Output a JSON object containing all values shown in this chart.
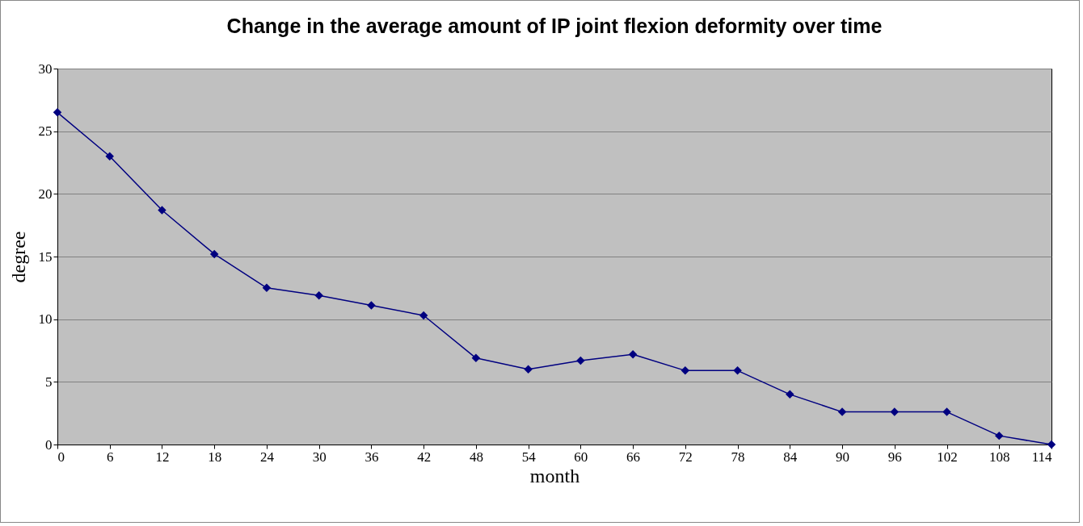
{
  "chart_data": {
    "type": "line",
    "title": "Change in the average amount of IP joint flexion deformity over time",
    "xlabel": "month",
    "ylabel": "degree",
    "categories": [
      "0",
      "6",
      "12",
      "18",
      "24",
      "30",
      "36",
      "42",
      "48",
      "54",
      "60",
      "66",
      "72",
      "78",
      "84",
      "90",
      "96",
      "102",
      "108",
      "114"
    ],
    "series": [
      {
        "color": "#000080",
        "values": [
          26.5,
          23.0,
          18.7,
          15.2,
          12.5,
          11.9,
          11.1,
          10.3,
          6.9,
          6.0,
          6.7,
          7.2,
          5.9,
          5.9,
          4.0,
          2.6,
          2.6,
          2.6,
          0.7,
          0
        ]
      }
    ],
    "ylim": [
      0,
      30
    ],
    "yticks": [
      0,
      5,
      10,
      15,
      20,
      25,
      30
    ],
    "grid": "y",
    "marker": "diamond",
    "line_style": "solid",
    "legend": false
  }
}
